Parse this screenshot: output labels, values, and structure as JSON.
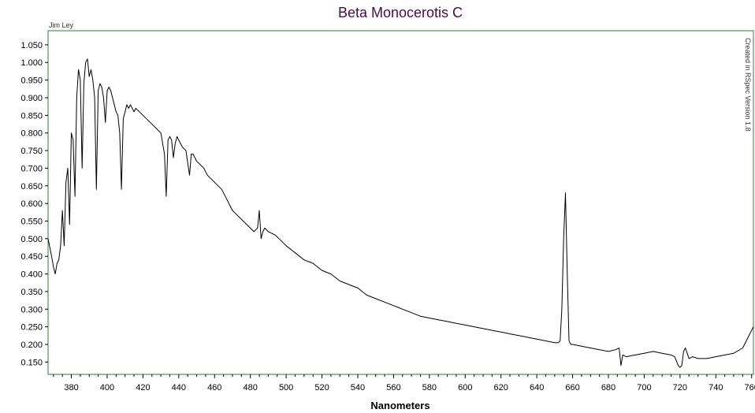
{
  "chart_data": {
    "type": "line",
    "title": "Beta Monocerotis C",
    "author": "Jim Ley",
    "credit": "Created in RSpec Version 1.8",
    "xlabel": "Nanometers",
    "ylabel": "",
    "xlim": [
      367,
      761
    ],
    "ylim": [
      0.115,
      1.09
    ],
    "x_ticks": [
      380,
      400,
      420,
      440,
      460,
      480,
      500,
      520,
      540,
      560,
      580,
      600,
      620,
      640,
      660,
      680,
      700,
      720,
      740,
      760
    ],
    "y_ticks": [
      "1.050",
      "1.000",
      "0.950",
      "0.900",
      "0.850",
      "0.800",
      "0.750",
      "0.700",
      "0.650",
      "0.600",
      "0.550",
      "0.500",
      "0.450",
      "0.400",
      "0.350",
      "0.300",
      "0.250",
      "0.200",
      "0.150"
    ],
    "grid": false,
    "legend": "none",
    "plot_border_color": "#2e7d32",
    "line_color": "#000000",
    "series": [
      {
        "x": [
          367,
          369,
          370,
          371,
          372,
          373,
          374,
          375,
          376,
          377,
          378,
          379,
          380,
          381,
          382,
          383,
          384,
          385,
          386,
          387,
          388,
          389,
          390,
          391,
          392,
          393,
          394,
          395,
          396,
          397,
          398,
          399,
          400,
          401,
          402,
          403,
          404,
          405,
          406,
          407,
          408,
          409,
          410,
          411,
          412,
          413,
          414,
          415,
          416,
          418,
          420,
          422,
          424,
          426,
          428,
          430,
          432,
          433,
          434,
          435,
          436,
          437,
          438,
          439,
          440,
          441,
          442,
          444,
          446,
          447,
          448,
          449,
          450,
          452,
          454,
          456,
          458,
          460,
          462,
          464,
          466,
          468,
          470,
          472,
          474,
          476,
          478,
          480,
          482,
          484,
          485,
          486,
          487,
          488,
          490,
          492,
          494,
          496,
          498,
          500,
          505,
          510,
          515,
          520,
          525,
          530,
          535,
          540,
          545,
          550,
          555,
          560,
          565,
          570,
          575,
          580,
          585,
          590,
          595,
          600,
          605,
          610,
          615,
          620,
          625,
          630,
          635,
          640,
          645,
          650,
          652,
          653,
          654,
          655,
          656,
          657,
          658,
          659,
          660,
          665,
          670,
          675,
          680,
          684,
          686,
          687,
          688,
          690,
          695,
          700,
          705,
          710,
          715,
          717,
          719,
          720,
          721,
          722,
          723,
          724,
          725,
          727,
          730,
          735,
          740,
          745,
          750,
          755,
          758,
          760,
          761
        ],
        "y": [
          0.5,
          0.45,
          0.42,
          0.4,
          0.43,
          0.44,
          0.48,
          0.58,
          0.48,
          0.66,
          0.7,
          0.54,
          0.8,
          0.78,
          0.62,
          0.9,
          0.98,
          0.95,
          0.7,
          0.94,
          1.0,
          1.01,
          0.96,
          0.98,
          0.95,
          0.9,
          0.64,
          0.92,
          0.94,
          0.93,
          0.9,
          0.83,
          0.92,
          0.93,
          0.92,
          0.9,
          0.88,
          0.86,
          0.85,
          0.8,
          0.64,
          0.84,
          0.86,
          0.88,
          0.87,
          0.88,
          0.87,
          0.86,
          0.87,
          0.86,
          0.85,
          0.84,
          0.83,
          0.82,
          0.81,
          0.8,
          0.74,
          0.62,
          0.78,
          0.79,
          0.78,
          0.73,
          0.77,
          0.79,
          0.78,
          0.77,
          0.76,
          0.75,
          0.68,
          0.74,
          0.74,
          0.73,
          0.72,
          0.71,
          0.7,
          0.68,
          0.67,
          0.66,
          0.65,
          0.64,
          0.62,
          0.6,
          0.58,
          0.57,
          0.56,
          0.55,
          0.54,
          0.53,
          0.52,
          0.53,
          0.58,
          0.5,
          0.52,
          0.53,
          0.52,
          0.515,
          0.51,
          0.5,
          0.49,
          0.48,
          0.46,
          0.44,
          0.43,
          0.41,
          0.4,
          0.38,
          0.37,
          0.36,
          0.34,
          0.33,
          0.32,
          0.31,
          0.3,
          0.29,
          0.28,
          0.275,
          0.27,
          0.265,
          0.26,
          0.255,
          0.25,
          0.245,
          0.24,
          0.235,
          0.23,
          0.225,
          0.22,
          0.215,
          0.21,
          0.205,
          0.205,
          0.21,
          0.3,
          0.5,
          0.63,
          0.4,
          0.21,
          0.2,
          0.2,
          0.195,
          0.19,
          0.185,
          0.18,
          0.185,
          0.19,
          0.14,
          0.17,
          0.165,
          0.17,
          0.175,
          0.18,
          0.175,
          0.17,
          0.165,
          0.14,
          0.135,
          0.14,
          0.18,
          0.19,
          0.175,
          0.16,
          0.165,
          0.16,
          0.16,
          0.165,
          0.17,
          0.175,
          0.19,
          0.22,
          0.24,
          0.25
        ]
      }
    ]
  }
}
